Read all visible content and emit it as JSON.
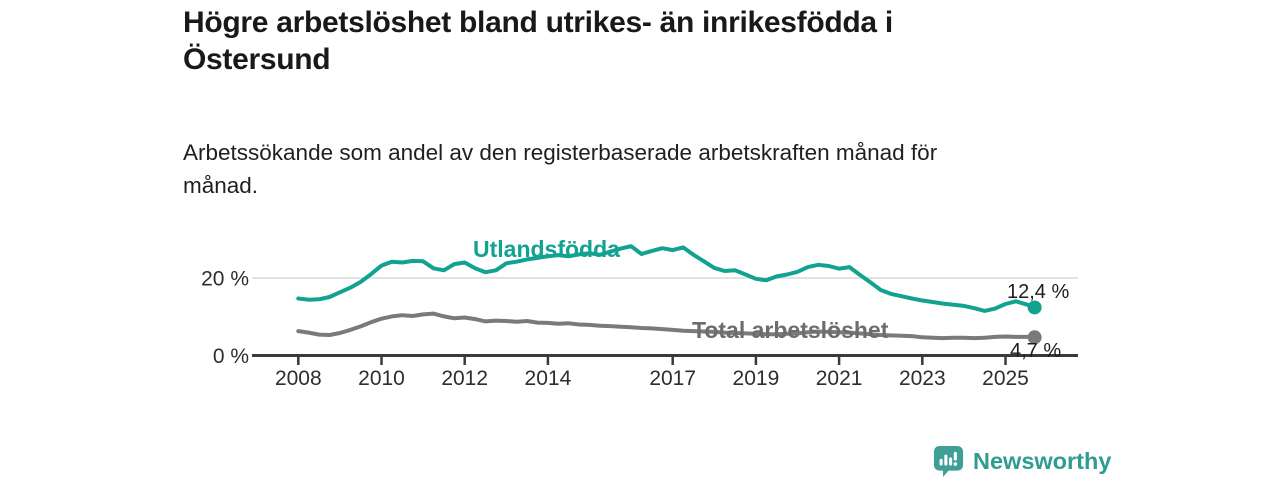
{
  "title": "Högre arbetslöshet bland utrikes- än inrikesfödda i Östersund",
  "subtitle": "Arbetssökande som andel av den registerbaserade arbetskraften månad för månad.",
  "brand": {
    "name": "Newsworthy",
    "text_color": "#2f9c92",
    "icon_color": "#3f9e96",
    "icon": "newsworthy-chart-bubble"
  },
  "colors": {
    "accent": "#12a291",
    "gray_series": "#7a7a7a",
    "gray_label": "#6d6d6d",
    "axis": "#3a3a3a",
    "grid": "#d9d9d9",
    "text": "#1d1d1d"
  },
  "chart_data": {
    "type": "line",
    "title": "Högre arbetslöshet bland utrikes- än inrikesfödda i Östersund",
    "subtitle": "Arbetssökande som andel av den registerbaserade arbetskraften månad för månad.",
    "xlabel": "",
    "ylabel": "",
    "x_range": [
      2008,
      2025.75
    ],
    "ylim": [
      0,
      29
    ],
    "grid": "single horizontal gridline at 20 %",
    "legend_position": "inline labels on lines",
    "x_ticks": [
      2008,
      2010,
      2012,
      2014,
      2017,
      2019,
      2021,
      2023,
      2025
    ],
    "y_ticks": [
      {
        "value": 0,
        "label": "0 %"
      },
      {
        "value": 20,
        "label": "20 %"
      }
    ],
    "series": [
      {
        "id": "utlandsfodda",
        "name": "Utlandsfödda",
        "color": "#12a291",
        "end_label": "12,4 %",
        "end_value": 12.4,
        "points": [
          [
            2008.0,
            14.7
          ],
          [
            2008.25,
            14.4
          ],
          [
            2008.5,
            14.5
          ],
          [
            2008.75,
            15.1
          ],
          [
            2009.0,
            16.3
          ],
          [
            2009.25,
            17.5
          ],
          [
            2009.5,
            19.0
          ],
          [
            2009.75,
            21.0
          ],
          [
            2010.0,
            23.2
          ],
          [
            2010.25,
            24.2
          ],
          [
            2010.5,
            24.0
          ],
          [
            2010.75,
            24.4
          ],
          [
            2011.0,
            24.3
          ],
          [
            2011.25,
            22.5
          ],
          [
            2011.5,
            22.0
          ],
          [
            2011.75,
            23.6
          ],
          [
            2012.0,
            24.0
          ],
          [
            2012.25,
            22.5
          ],
          [
            2012.5,
            21.5
          ],
          [
            2012.75,
            22.0
          ],
          [
            2013.0,
            23.8
          ],
          [
            2013.25,
            24.2
          ],
          [
            2013.5,
            24.8
          ],
          [
            2013.75,
            25.2
          ],
          [
            2014.0,
            25.6
          ],
          [
            2014.25,
            25.9
          ],
          [
            2014.5,
            25.6
          ],
          [
            2014.75,
            26.1
          ],
          [
            2015.0,
            26.4
          ],
          [
            2015.25,
            26.0
          ],
          [
            2015.5,
            26.8
          ],
          [
            2015.75,
            27.6
          ],
          [
            2016.0,
            28.2
          ],
          [
            2016.25,
            26.2
          ],
          [
            2016.5,
            27.0
          ],
          [
            2016.75,
            27.7
          ],
          [
            2017.0,
            27.2
          ],
          [
            2017.25,
            27.9
          ],
          [
            2017.5,
            26.0
          ],
          [
            2017.75,
            24.3
          ],
          [
            2018.0,
            22.6
          ],
          [
            2018.25,
            21.8
          ],
          [
            2018.5,
            22.0
          ],
          [
            2018.75,
            20.9
          ],
          [
            2019.0,
            19.8
          ],
          [
            2019.25,
            19.4
          ],
          [
            2019.5,
            20.4
          ],
          [
            2019.75,
            20.9
          ],
          [
            2020.0,
            21.6
          ],
          [
            2020.25,
            22.8
          ],
          [
            2020.5,
            23.4
          ],
          [
            2020.75,
            23.1
          ],
          [
            2021.0,
            22.4
          ],
          [
            2021.25,
            22.8
          ],
          [
            2021.5,
            20.8
          ],
          [
            2021.75,
            18.9
          ],
          [
            2022.0,
            16.9
          ],
          [
            2022.25,
            15.9
          ],
          [
            2022.5,
            15.3
          ],
          [
            2022.75,
            14.7
          ],
          [
            2023.0,
            14.2
          ],
          [
            2023.25,
            13.8
          ],
          [
            2023.5,
            13.4
          ],
          [
            2023.75,
            13.1
          ],
          [
            2024.0,
            12.8
          ],
          [
            2024.25,
            12.2
          ],
          [
            2024.5,
            11.5
          ],
          [
            2024.75,
            12.1
          ],
          [
            2025.0,
            13.3
          ],
          [
            2025.25,
            14.0
          ],
          [
            2025.5,
            13.2
          ],
          [
            2025.7,
            12.4
          ]
        ]
      },
      {
        "id": "total",
        "name": "Total arbetslöshet",
        "color": "#7a7a7a",
        "end_label": "4,7 %",
        "end_value": 4.7,
        "points": [
          [
            2008.0,
            6.3
          ],
          [
            2008.25,
            5.9
          ],
          [
            2008.5,
            5.4
          ],
          [
            2008.75,
            5.3
          ],
          [
            2009.0,
            5.8
          ],
          [
            2009.25,
            6.6
          ],
          [
            2009.5,
            7.5
          ],
          [
            2009.75,
            8.6
          ],
          [
            2010.0,
            9.5
          ],
          [
            2010.25,
            10.1
          ],
          [
            2010.5,
            10.4
          ],
          [
            2010.75,
            10.2
          ],
          [
            2011.0,
            10.6
          ],
          [
            2011.25,
            10.8
          ],
          [
            2011.5,
            10.1
          ],
          [
            2011.75,
            9.6
          ],
          [
            2012.0,
            9.8
          ],
          [
            2012.25,
            9.4
          ],
          [
            2012.5,
            8.8
          ],
          [
            2012.75,
            9.0
          ],
          [
            2013.0,
            8.9
          ],
          [
            2013.25,
            8.7
          ],
          [
            2013.5,
            8.9
          ],
          [
            2013.75,
            8.5
          ],
          [
            2014.0,
            8.4
          ],
          [
            2014.25,
            8.2
          ],
          [
            2014.5,
            8.3
          ],
          [
            2014.75,
            8.0
          ],
          [
            2015.0,
            7.9
          ],
          [
            2015.25,
            7.7
          ],
          [
            2015.5,
            7.6
          ],
          [
            2015.75,
            7.4
          ],
          [
            2016.0,
            7.3
          ],
          [
            2016.25,
            7.1
          ],
          [
            2016.5,
            7.0
          ],
          [
            2016.75,
            6.8
          ],
          [
            2017.0,
            6.6
          ],
          [
            2017.25,
            6.4
          ],
          [
            2017.5,
            6.3
          ],
          [
            2017.75,
            6.2
          ],
          [
            2018.0,
            6.1
          ],
          [
            2018.25,
            5.9
          ],
          [
            2018.5,
            5.8
          ],
          [
            2018.75,
            5.7
          ],
          [
            2019.0,
            5.6
          ],
          [
            2019.25,
            5.5
          ],
          [
            2019.5,
            5.5
          ],
          [
            2019.75,
            5.6
          ],
          [
            2020.0,
            5.7
          ],
          [
            2020.25,
            6.0
          ],
          [
            2020.5,
            6.2
          ],
          [
            2020.75,
            6.1
          ],
          [
            2021.0,
            6.0
          ],
          [
            2021.25,
            5.9
          ],
          [
            2021.5,
            5.7
          ],
          [
            2021.75,
            5.5
          ],
          [
            2022.0,
            5.3
          ],
          [
            2022.25,
            5.2
          ],
          [
            2022.5,
            5.1
          ],
          [
            2022.75,
            5.0
          ],
          [
            2023.0,
            4.7
          ],
          [
            2023.25,
            4.6
          ],
          [
            2023.5,
            4.5
          ],
          [
            2023.75,
            4.6
          ],
          [
            2024.0,
            4.6
          ],
          [
            2024.25,
            4.5
          ],
          [
            2024.5,
            4.6
          ],
          [
            2024.75,
            4.8
          ],
          [
            2025.0,
            4.9
          ],
          [
            2025.25,
            4.8
          ],
          [
            2025.5,
            4.8
          ],
          [
            2025.7,
            4.7
          ]
        ]
      }
    ]
  }
}
